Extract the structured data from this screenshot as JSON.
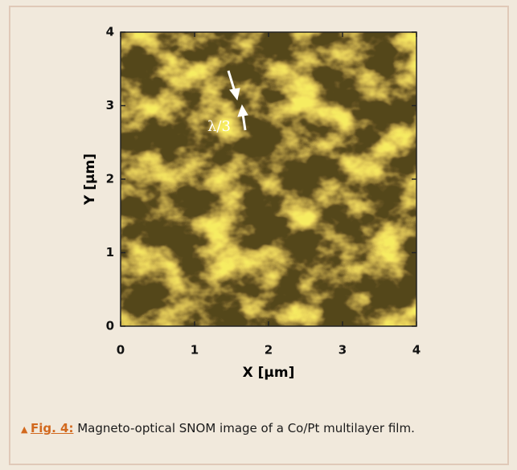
{
  "chart_data": {
    "type": "image",
    "x_label": "X [μm]",
    "y_label": "Y [μm]",
    "xlim": [
      0,
      4
    ],
    "ylim": [
      0,
      4
    ],
    "xticks": [
      0,
      1,
      2,
      3,
      4
    ],
    "yticks": [
      0,
      1,
      2,
      3,
      4
    ],
    "annotation": "λ/3"
  },
  "caption": {
    "label": "Fig. 4:",
    "text": "Magneto-optical SNOM image of a Co/Pt multilayer film."
  }
}
